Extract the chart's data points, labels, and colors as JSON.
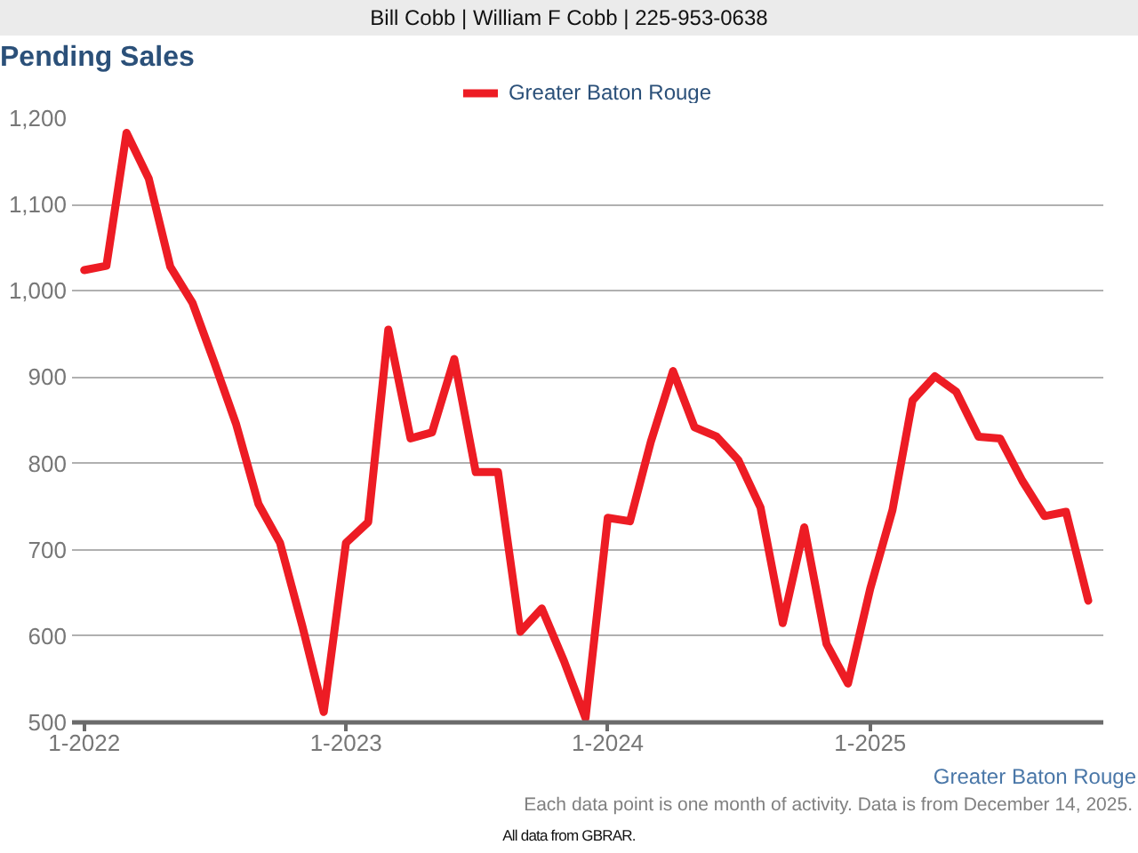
{
  "chart_data": {
    "type": "line",
    "title": "Pending Sales",
    "annotations": [
      "Bill Cobb | William F Cobb | 225-953-0638",
      "Greater Baton Rouge",
      "Each data point is one month of activity. Data is from December 14, 2025.",
      "All data from GBRAR."
    ],
    "x": [
      "2022-01",
      "2022-02",
      "2022-03",
      "2022-04",
      "2022-05",
      "2022-06",
      "2022-07",
      "2022-08",
      "2022-09",
      "2022-10",
      "2022-11",
      "2022-12",
      "2023-01",
      "2023-02",
      "2023-03",
      "2023-04",
      "2023-05",
      "2023-06",
      "2023-07",
      "2023-08",
      "2023-09",
      "2023-10",
      "2023-11",
      "2023-12",
      "2024-01",
      "2024-02",
      "2024-03",
      "2024-04",
      "2024-05",
      "2024-06",
      "2024-07",
      "2024-08",
      "2024-09",
      "2024-10",
      "2024-11",
      "2024-12",
      "2025-01",
      "2025-02",
      "2025-03",
      "2025-04",
      "2025-05",
      "2025-06",
      "2025-07",
      "2025-08",
      "2025-09",
      "2025-10",
      "2025-11"
    ],
    "series": [
      {
        "name": "Greater Baton Rouge",
        "color": "#ed1c24",
        "values": [
          1024,
          1029,
          1183,
          1130,
          1028,
          986,
          918,
          845,
          753,
          708,
          612,
          512,
          708,
          732,
          955,
          829,
          836,
          921,
          790,
          790,
          605,
          632,
          571,
          505,
          737,
          733,
          825,
          907,
          842,
          831,
          804,
          749,
          615,
          726,
          591,
          545,
          655,
          746,
          873,
          901,
          883,
          831,
          829,
          780,
          739,
          744,
          641
        ]
      }
    ],
    "xlim": [
      "2021-12-15",
      "2025-11-22"
    ],
    "xticks": [
      {
        "value": "2022-01",
        "label": "1-2022"
      },
      {
        "value": "2023-01",
        "label": "1-2023"
      },
      {
        "value": "2024-01",
        "label": "1-2024"
      },
      {
        "value": "2025-01",
        "label": "1-2025"
      }
    ],
    "ylim": [
      500,
      1200
    ],
    "yticks": [
      500,
      600,
      700,
      800,
      900,
      {
        "value": 1000,
        "label": "1,000"
      },
      {
        "value": 1100,
        "label": "1,100"
      },
      {
        "value": 1200,
        "label": "1,200"
      }
    ],
    "grid": "y",
    "legend": "top"
  }
}
